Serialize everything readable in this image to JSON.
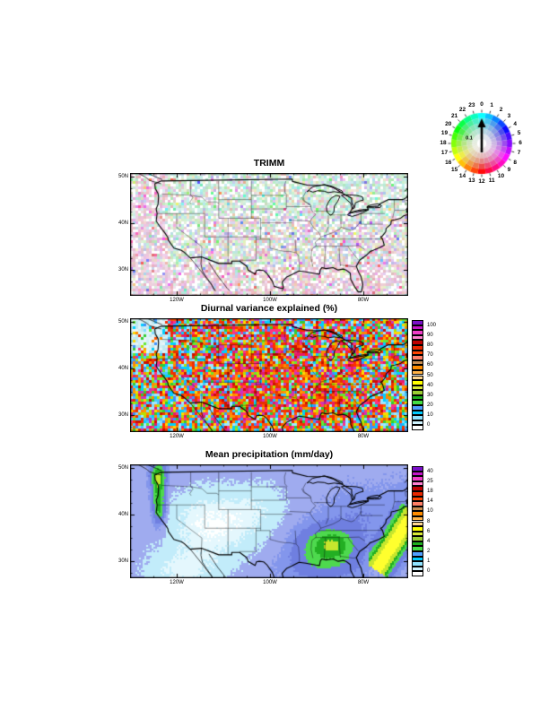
{
  "figure": {
    "panels": [
      {
        "id": "trmm",
        "title": "TRIMM",
        "lat_labels": [
          "50N",
          "40N",
          "30N"
        ],
        "lon_labels": [
          "120W",
          "100W",
          "80W"
        ]
      },
      {
        "id": "variance",
        "title": "Diurnal variance explained (%)",
        "lat_labels": [
          "50N",
          "40N",
          "30N"
        ],
        "lon_labels": [
          "120W",
          "100W",
          "80W"
        ],
        "colorbar_labels": [
          "100",
          "90",
          "80",
          "70",
          "60",
          "50",
          "40",
          "30",
          "20",
          "10",
          "0"
        ]
      },
      {
        "id": "precip",
        "title": "Mean precipitation (mm/day)",
        "lat_labels": [
          "50N",
          "40N",
          "30N"
        ],
        "lon_labels": [
          "120W",
          "100W",
          "80W"
        ],
        "colorbar_labels": [
          "40",
          "25",
          "18",
          "14",
          "10",
          "8",
          "6",
          "4",
          "2",
          "1",
          "0"
        ]
      }
    ],
    "colorbar_colors_top_to_bottom": [
      "#7A0FC8",
      "#C414C8",
      "#F03CC8",
      "#FF7FD0",
      "#BE0000",
      "#E82800",
      "#FF4500",
      "#FF7F66",
      "#C88C50",
      "#FF8C00",
      "#FFB347",
      "#FFD78F",
      "#FFFF00",
      "#D7E837",
      "#9ACD32",
      "#1FAF1F",
      "#44DD44",
      "#4F9FFF",
      "#00CCFF",
      "#8FE3FF",
      "#CFF3FF",
      "#FFFFFF"
    ],
    "phase_wheel": {
      "hour_labels": [
        "0",
        "1",
        "2",
        "3",
        "4",
        "5",
        "6",
        "7",
        "8",
        "9",
        "10",
        "11",
        "12",
        "13",
        "14",
        "15",
        "16",
        "17",
        "18",
        "19",
        "20",
        "21",
        "22",
        "23"
      ],
      "center_label": "0.1"
    }
  },
  "chart_data": [
    {
      "type": "heatmap",
      "title": "TRIMM",
      "description": "Diurnal-cycle harmonic map over the continental US; hue encodes local time of maximum (0-23 h, per color wheel legend), saturation encodes amplitude (reference amplitude 0.1 shown by legend arrow); field is mostly pale, weakly saturated pastel colors.",
      "x_axis": {
        "tick_labels": [
          "120W",
          "100W",
          "80W"
        ],
        "range": [
          "130W",
          "70W"
        ]
      },
      "y_axis": {
        "tick_labels": [
          "50N",
          "40N",
          "30N"
        ],
        "range": [
          "25N",
          "51N"
        ]
      },
      "legend": {
        "type": "color-wheel",
        "hours": [
          0,
          1,
          2,
          3,
          4,
          5,
          6,
          7,
          8,
          9,
          10,
          11,
          12,
          13,
          14,
          15,
          16,
          17,
          18,
          19,
          20,
          21,
          22,
          23
        ],
        "amplitude_reference": 0.1
      }
    },
    {
      "type": "heatmap",
      "title": "Diurnal variance explained (%)",
      "colorbar": {
        "tick_labels": [
          100,
          90,
          80,
          70,
          60,
          50,
          40,
          30,
          20,
          10,
          0
        ],
        "boxes": 22,
        "colors_top_to_bottom": [
          "#7A0FC8",
          "#C414C8",
          "#F03CC8",
          "#FF7FD0",
          "#BE0000",
          "#E82800",
          "#FF4500",
          "#FF7F66",
          "#C88C50",
          "#FF8C00",
          "#FFB347",
          "#FFD78F",
          "#FFFF00",
          "#D7E837",
          "#9ACD32",
          "#1FAF1F",
          "#44DD44",
          "#4F9FFF",
          "#00CCFF",
          "#8FE3FF",
          "#CFF3FF",
          "#FFFFFF"
        ]
      },
      "x_axis": {
        "tick_labels": [
          "120W",
          "100W",
          "80W"
        ],
        "range": [
          "130W",
          "70W"
        ]
      },
      "y_axis": {
        "tick_labels": [
          "50N",
          "40N",
          "30N"
        ],
        "range": [
          "26N",
          "51N"
        ]
      },
      "pattern_summary": "Highly speckled grid-cell field: 50-90% (red/orange) dominates the central US, Great Plains and Rockies; 10-30% (cyan/light blue) speckles elsewhere; low pale values along the Pacific Northwest coast."
    },
    {
      "type": "heatmap",
      "title": "Mean precipitation (mm/day)",
      "colorbar": {
        "tick_labels": [
          40,
          25,
          18,
          14,
          10,
          8,
          6,
          4,
          2,
          1,
          0
        ],
        "boxes": 22,
        "colors_top_to_bottom": [
          "#7A0FC8",
          "#C414C8",
          "#F03CC8",
          "#FF7FD0",
          "#BE0000",
          "#E82800",
          "#FF4500",
          "#FF7F66",
          "#C88C50",
          "#FF8C00",
          "#FFB347",
          "#FFD78F",
          "#FFFF00",
          "#D7E837",
          "#9ACD32",
          "#1FAF1F",
          "#44DD44",
          "#4F9FFF",
          "#00CCFF",
          "#8FE3FF",
          "#CFF3FF",
          "#FFFFFF"
        ]
      },
      "x_axis": {
        "tick_labels": [
          "120W",
          "100W",
          "80W"
        ],
        "range": [
          "130W",
          "70W"
        ]
      },
      "y_axis": {
        "tick_labels": [
          "50N",
          "40N",
          "30N"
        ],
        "range": [
          "26N",
          "51N"
        ]
      },
      "pattern_summary": "Smooth field: under 1-2 mm/day (white/pale cyan) in the interior West and Southwest; 2-4 mm/day (periwinkle blue) over the oceans, Midwest and Northeast; 6-10 mm/day (greens) over the Southeast and along the Pacific Northwest coast; a 10-18 mm/day (yellow-green to yellow) band offshore of the East Coast."
    }
  ]
}
